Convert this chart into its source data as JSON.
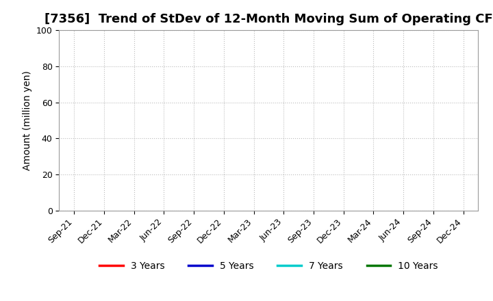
{
  "title": "[7356]  Trend of StDev of 12-Month Moving Sum of Operating CF",
  "ylabel": "Amount (million yen)",
  "ylim": [
    0,
    100
  ],
  "yticks": [
    0,
    20,
    40,
    60,
    80,
    100
  ],
  "x_labels": [
    "Sep-21",
    "Dec-21",
    "Mar-22",
    "Jun-22",
    "Sep-22",
    "Dec-22",
    "Mar-23",
    "Jun-23",
    "Sep-23",
    "Dec-23",
    "Mar-24",
    "Jun-24",
    "Sep-24",
    "Dec-24"
  ],
  "background_color": "#ffffff",
  "grid_color": "#bbbbbb",
  "legend_entries": [
    {
      "label": "3 Years",
      "color": "#ff0000"
    },
    {
      "label": "5 Years",
      "color": "#0000cc"
    },
    {
      "label": "7 Years",
      "color": "#00cccc"
    },
    {
      "label": "10 Years",
      "color": "#007700"
    }
  ],
  "title_fontsize": 13,
  "axis_label_fontsize": 10,
  "tick_fontsize": 9,
  "legend_fontsize": 10
}
